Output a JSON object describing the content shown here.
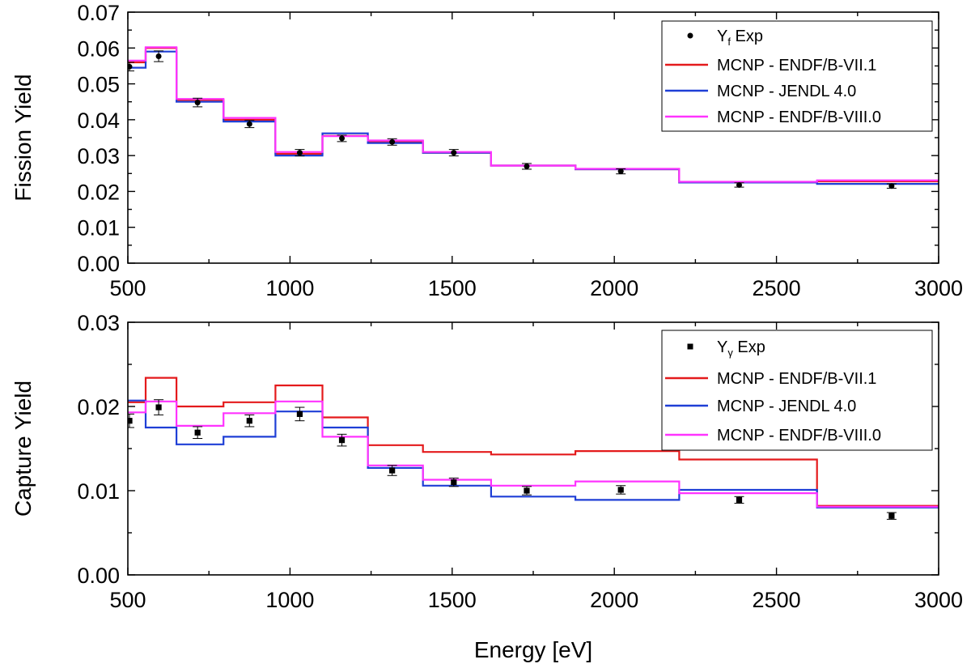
{
  "chart_data": [
    {
      "type": "line",
      "ylabel": "Fission Yield",
      "xlim": [
        500,
        3000
      ],
      "ylim": [
        0,
        0.07
      ],
      "xticks": [
        500,
        1000,
        1500,
        2000,
        2500,
        3000
      ],
      "yticks": [
        "0.00",
        "0.01",
        "0.02",
        "0.03",
        "0.04",
        "0.05",
        "0.06",
        "0.07"
      ],
      "xtick_labels": [
        "500",
        "1000",
        "1500",
        "2000",
        "2500",
        "3000"
      ],
      "legend_position": "top-right",
      "bin_edges": [
        500,
        555,
        650,
        795,
        955,
        1100,
        1240,
        1410,
        1620,
        1880,
        2200,
        2625,
        3000
      ],
      "experiment": {
        "name_main": "Y",
        "name_sub": "f",
        "name_rest": " Exp",
        "marker": "circle",
        "color": "#000000",
        "x": [
          505,
          595,
          715,
          875,
          1030,
          1160,
          1315,
          1505,
          1730,
          2020,
          2385,
          2855
        ],
        "y": [
          0.0548,
          0.0577,
          0.0448,
          0.0388,
          0.0308,
          0.0348,
          0.0338,
          0.0308,
          0.027,
          0.0256,
          0.0218,
          0.0215
        ],
        "err": [
          0.0012,
          0.0015,
          0.0012,
          0.001,
          0.0009,
          0.0009,
          0.0009,
          0.0009,
          0.0008,
          0.0007,
          0.0006,
          0.0006
        ]
      },
      "series": [
        {
          "name": "MCNP - ENDF/B-VII.1",
          "color": "#e41a1c",
          "values": [
            0.056,
            0.06,
            0.0455,
            0.04,
            0.0305,
            0.0355,
            0.034,
            0.0308,
            0.0272,
            0.0262,
            0.0225,
            0.0228
          ]
        },
        {
          "name": "MCNP - JENDL 4.0",
          "color": "#1f3fd6",
          "values": [
            0.0545,
            0.059,
            0.045,
            0.0395,
            0.03,
            0.0362,
            0.0335,
            0.0308,
            0.0272,
            0.0262,
            0.0225,
            0.0221
          ]
        },
        {
          "name": "MCNP - ENDF/B-VIII.0",
          "color": "#ff33ff",
          "values": [
            0.0565,
            0.0602,
            0.0458,
            0.0405,
            0.031,
            0.0354,
            0.0342,
            0.031,
            0.0272,
            0.0263,
            0.0227,
            0.0231
          ]
        }
      ]
    },
    {
      "type": "line",
      "xlabel": "Energy [eV]",
      "ylabel": "Capture Yield",
      "xlim": [
        500,
        3000
      ],
      "ylim": [
        0,
        0.03
      ],
      "xticks": [
        500,
        1000,
        1500,
        2000,
        2500,
        3000
      ],
      "yticks": [
        "0.00",
        "0.01",
        "0.02",
        "0.03"
      ],
      "xtick_labels": [
        "500",
        "1000",
        "1500",
        "2000",
        "2500",
        "3000"
      ],
      "legend_position": "top-right",
      "bin_edges": [
        500,
        555,
        650,
        795,
        955,
        1100,
        1240,
        1410,
        1620,
        1880,
        2200,
        2625,
        3000
      ],
      "experiment": {
        "name_main": "Y",
        "name_sub": "γ",
        "name_rest": " Exp",
        "marker": "square",
        "color": "#000000",
        "x": [
          505,
          595,
          715,
          875,
          1030,
          1160,
          1315,
          1505,
          1730,
          2020,
          2385,
          2855
        ],
        "y": [
          0.0183,
          0.0199,
          0.0169,
          0.0183,
          0.0191,
          0.016,
          0.0124,
          0.011,
          0.01,
          0.0101,
          0.0089,
          0.007
        ],
        "err": [
          0.0008,
          0.0009,
          0.0007,
          0.0007,
          0.0008,
          0.0007,
          0.0006,
          0.0005,
          0.0005,
          0.0005,
          0.0004,
          0.0004
        ]
      },
      "series": [
        {
          "name": "MCNP - ENDF/B-VII.1",
          "color": "#e41a1c",
          "values": [
            0.0205,
            0.0234,
            0.02,
            0.0205,
            0.0225,
            0.0187,
            0.0154,
            0.0146,
            0.0143,
            0.0147,
            0.0137,
            0.0082
          ]
        },
        {
          "name": "MCNP - JENDL 4.0",
          "color": "#1f3fd6",
          "values": [
            0.0207,
            0.0175,
            0.0155,
            0.0164,
            0.0194,
            0.0175,
            0.0127,
            0.0106,
            0.0093,
            0.0089,
            0.0101,
            0.008
          ]
        },
        {
          "name": "MCNP - ENDF/B-VIII.0",
          "color": "#ff33ff",
          "values": [
            0.0193,
            0.0206,
            0.0177,
            0.0192,
            0.0206,
            0.0164,
            0.013,
            0.0113,
            0.0106,
            0.0111,
            0.0097,
            0.0081
          ]
        }
      ]
    }
  ]
}
